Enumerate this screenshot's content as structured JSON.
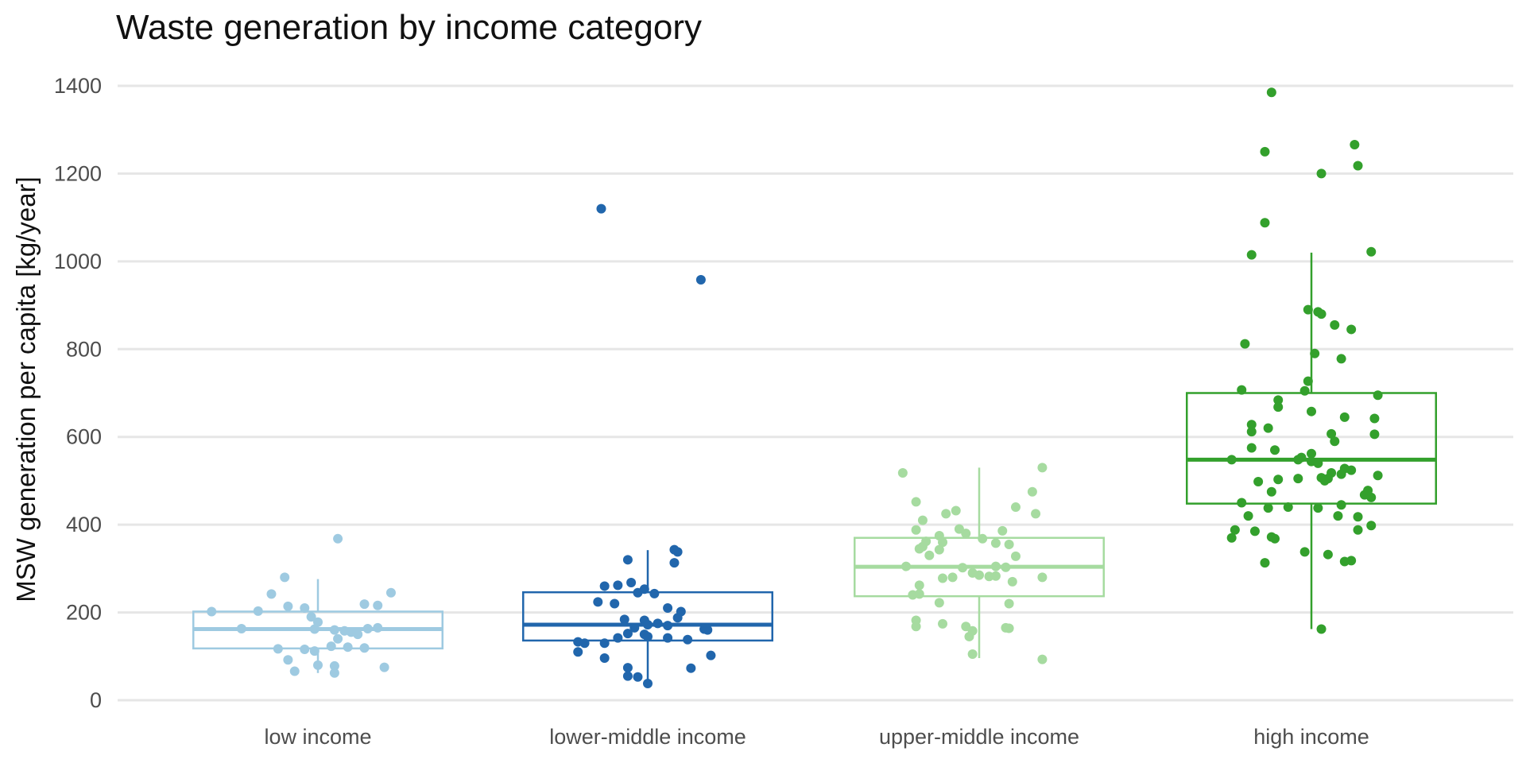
{
  "chart_data": {
    "type": "box",
    "title": "Waste generation by income category",
    "xlabel": "",
    "ylabel": "MSW generation per capita [kg/year]",
    "ylim": [
      0,
      1400
    ],
    "yticks": [
      0,
      200,
      400,
      600,
      800,
      1000,
      1200,
      1400
    ],
    "grid": "horizontal",
    "legend": "none",
    "categories": [
      "low income",
      "lower-middle income",
      "upper-middle income",
      "high income"
    ],
    "series": [
      {
        "category": "low income",
        "color": "#9ecae1",
        "box": {
          "lower_whisker": 62,
          "q1": 118,
          "median": 162,
          "q3": 202,
          "upper_whisker": 276
        },
        "points": [
          {
            "x": 0.06,
            "y": 368
          },
          {
            "x": -0.1,
            "y": 280
          },
          {
            "x": -0.14,
            "y": 242
          },
          {
            "x": 0.22,
            "y": 245
          },
          {
            "x": 0.14,
            "y": 219
          },
          {
            "x": 0.18,
            "y": 216
          },
          {
            "x": -0.09,
            "y": 214
          },
          {
            "x": -0.04,
            "y": 210
          },
          {
            "x": -0.18,
            "y": 203
          },
          {
            "x": -0.32,
            "y": 202
          },
          {
            "x": -0.02,
            "y": 190
          },
          {
            "x": 0.0,
            "y": 178
          },
          {
            "x": -0.23,
            "y": 163
          },
          {
            "x": -0.01,
            "y": 162
          },
          {
            "x": 0.05,
            "y": 160
          },
          {
            "x": 0.08,
            "y": 158
          },
          {
            "x": 0.1,
            "y": 155
          },
          {
            "x": 0.15,
            "y": 163
          },
          {
            "x": 0.18,
            "y": 165
          },
          {
            "x": 0.12,
            "y": 150
          },
          {
            "x": 0.06,
            "y": 140
          },
          {
            "x": 0.04,
            "y": 123
          },
          {
            "x": 0.09,
            "y": 121
          },
          {
            "x": 0.14,
            "y": 119
          },
          {
            "x": -0.12,
            "y": 117
          },
          {
            "x": -0.04,
            "y": 116
          },
          {
            "x": -0.01,
            "y": 112
          },
          {
            "x": -0.09,
            "y": 92
          },
          {
            "x": 0.0,
            "y": 80
          },
          {
            "x": 0.05,
            "y": 78
          },
          {
            "x": 0.2,
            "y": 75
          },
          {
            "x": -0.07,
            "y": 66
          },
          {
            "x": 0.05,
            "y": 62
          }
        ]
      },
      {
        "category": "lower-middle income",
        "color": "#2166ac",
        "box": {
          "lower_whisker": 38,
          "q1": 136,
          "median": 172,
          "q3": 246,
          "upper_whisker": 342
        },
        "points": [
          {
            "x": -0.14,
            "y": 1120
          },
          {
            "x": 0.16,
            "y": 958
          },
          {
            "x": 0.08,
            "y": 343
          },
          {
            "x": 0.09,
            "y": 338
          },
          {
            "x": -0.06,
            "y": 320
          },
          {
            "x": 0.08,
            "y": 313
          },
          {
            "x": -0.05,
            "y": 268
          },
          {
            "x": -0.13,
            "y": 260
          },
          {
            "x": -0.09,
            "y": 262
          },
          {
            "x": -0.01,
            "y": 253
          },
          {
            "x": -0.03,
            "y": 245
          },
          {
            "x": 0.02,
            "y": 243
          },
          {
            "x": -0.15,
            "y": 224
          },
          {
            "x": -0.1,
            "y": 220
          },
          {
            "x": 0.06,
            "y": 210
          },
          {
            "x": 0.1,
            "y": 202
          },
          {
            "x": 0.09,
            "y": 188
          },
          {
            "x": -0.07,
            "y": 184
          },
          {
            "x": -0.01,
            "y": 182
          },
          {
            "x": 0.0,
            "y": 172
          },
          {
            "x": 0.03,
            "y": 175
          },
          {
            "x": 0.06,
            "y": 170
          },
          {
            "x": -0.04,
            "y": 165
          },
          {
            "x": 0.17,
            "y": 162
          },
          {
            "x": 0.18,
            "y": 160
          },
          {
            "x": -0.06,
            "y": 152
          },
          {
            "x": -0.01,
            "y": 150
          },
          {
            "x": 0.0,
            "y": 145
          },
          {
            "x": -0.09,
            "y": 142
          },
          {
            "x": 0.06,
            "y": 142
          },
          {
            "x": -0.21,
            "y": 133
          },
          {
            "x": -0.19,
            "y": 130
          },
          {
            "x": -0.13,
            "y": 130
          },
          {
            "x": 0.12,
            "y": 138
          },
          {
            "x": -0.21,
            "y": 110
          },
          {
            "x": 0.19,
            "y": 102
          },
          {
            "x": -0.13,
            "y": 96
          },
          {
            "x": 0.13,
            "y": 73
          },
          {
            "x": -0.06,
            "y": 74
          },
          {
            "x": -0.06,
            "y": 55
          },
          {
            "x": -0.03,
            "y": 53
          },
          {
            "x": 0.0,
            "y": 38
          }
        ]
      },
      {
        "category": "upper-middle income",
        "color": "#a6dba0",
        "box": {
          "lower_whisker": 96,
          "q1": 237,
          "median": 304,
          "q3": 370,
          "upper_whisker": 530
        },
        "points": [
          {
            "x": 0.19,
            "y": 530
          },
          {
            "x": -0.23,
            "y": 518
          },
          {
            "x": 0.16,
            "y": 475
          },
          {
            "x": -0.19,
            "y": 452
          },
          {
            "x": 0.11,
            "y": 440
          },
          {
            "x": -0.07,
            "y": 432
          },
          {
            "x": -0.1,
            "y": 425
          },
          {
            "x": 0.17,
            "y": 425
          },
          {
            "x": -0.17,
            "y": 410
          },
          {
            "x": -0.06,
            "y": 390
          },
          {
            "x": -0.19,
            "y": 388
          },
          {
            "x": 0.07,
            "y": 386
          },
          {
            "x": -0.12,
            "y": 375
          },
          {
            "x": -0.04,
            "y": 380
          },
          {
            "x": -0.16,
            "y": 362
          },
          {
            "x": -0.11,
            "y": 360
          },
          {
            "x": 0.01,
            "y": 368
          },
          {
            "x": 0.05,
            "y": 358
          },
          {
            "x": 0.09,
            "y": 355
          },
          {
            "x": -0.17,
            "y": 350
          },
          {
            "x": -0.18,
            "y": 345
          },
          {
            "x": -0.12,
            "y": 343
          },
          {
            "x": -0.15,
            "y": 330
          },
          {
            "x": 0.11,
            "y": 328
          },
          {
            "x": -0.22,
            "y": 305
          },
          {
            "x": -0.05,
            "y": 302
          },
          {
            "x": 0.05,
            "y": 305
          },
          {
            "x": 0.08,
            "y": 303
          },
          {
            "x": -0.02,
            "y": 290
          },
          {
            "x": 0.0,
            "y": 285
          },
          {
            "x": 0.03,
            "y": 282
          },
          {
            "x": 0.05,
            "y": 283
          },
          {
            "x": -0.08,
            "y": 280
          },
          {
            "x": -0.11,
            "y": 278
          },
          {
            "x": 0.19,
            "y": 280
          },
          {
            "x": 0.1,
            "y": 270
          },
          {
            "x": -0.18,
            "y": 262
          },
          {
            "x": -0.18,
            "y": 242
          },
          {
            "x": -0.2,
            "y": 240
          },
          {
            "x": 0.09,
            "y": 220
          },
          {
            "x": -0.12,
            "y": 222
          },
          {
            "x": -0.19,
            "y": 182
          },
          {
            "x": -0.11,
            "y": 174
          },
          {
            "x": -0.19,
            "y": 168
          },
          {
            "x": -0.04,
            "y": 168
          },
          {
            "x": 0.08,
            "y": 165
          },
          {
            "x": 0.09,
            "y": 164
          },
          {
            "x": -0.02,
            "y": 158
          },
          {
            "x": -0.03,
            "y": 145
          },
          {
            "x": -0.02,
            "y": 105
          },
          {
            "x": 0.19,
            "y": 93
          }
        ]
      },
      {
        "category": "high income",
        "color": "#33a02c",
        "box": {
          "lower_whisker": 162,
          "q1": 448,
          "median": 548,
          "q3": 700,
          "upper_whisker": 1020
        },
        "points": [
          {
            "x": -0.12,
            "y": 1385
          },
          {
            "x": -0.14,
            "y": 1250
          },
          {
            "x": 0.13,
            "y": 1266
          },
          {
            "x": 0.14,
            "y": 1218
          },
          {
            "x": 0.03,
            "y": 1200
          },
          {
            "x": -0.14,
            "y": 1088
          },
          {
            "x": 0.18,
            "y": 1022
          },
          {
            "x": -0.18,
            "y": 1015
          },
          {
            "x": -0.01,
            "y": 890
          },
          {
            "x": 0.02,
            "y": 885
          },
          {
            "x": 0.03,
            "y": 880
          },
          {
            "x": 0.07,
            "y": 855
          },
          {
            "x": 0.12,
            "y": 845
          },
          {
            "x": -0.2,
            "y": 812
          },
          {
            "x": 0.01,
            "y": 790
          },
          {
            "x": 0.09,
            "y": 778
          },
          {
            "x": -0.01,
            "y": 727
          },
          {
            "x": -0.02,
            "y": 705
          },
          {
            "x": -0.21,
            "y": 707
          },
          {
            "x": 0.2,
            "y": 695
          },
          {
            "x": -0.1,
            "y": 684
          },
          {
            "x": -0.1,
            "y": 668
          },
          {
            "x": 0.0,
            "y": 658
          },
          {
            "x": 0.1,
            "y": 645
          },
          {
            "x": 0.19,
            "y": 642
          },
          {
            "x": -0.18,
            "y": 628
          },
          {
            "x": -0.13,
            "y": 620
          },
          {
            "x": -0.18,
            "y": 612
          },
          {
            "x": 0.06,
            "y": 607
          },
          {
            "x": 0.19,
            "y": 606
          },
          {
            "x": 0.07,
            "y": 590
          },
          {
            "x": -0.18,
            "y": 575
          },
          {
            "x": -0.11,
            "y": 570
          },
          {
            "x": 0.0,
            "y": 562
          },
          {
            "x": -0.03,
            "y": 553
          },
          {
            "x": -0.04,
            "y": 548
          },
          {
            "x": 0.0,
            "y": 544
          },
          {
            "x": 0.02,
            "y": 540
          },
          {
            "x": -0.24,
            "y": 548
          },
          {
            "x": 0.1,
            "y": 528
          },
          {
            "x": 0.12,
            "y": 524
          },
          {
            "x": 0.06,
            "y": 518
          },
          {
            "x": 0.09,
            "y": 515
          },
          {
            "x": 0.2,
            "y": 512
          },
          {
            "x": -0.04,
            "y": 505
          },
          {
            "x": 0.03,
            "y": 507
          },
          {
            "x": 0.05,
            "y": 505
          },
          {
            "x": -0.1,
            "y": 503
          },
          {
            "x": 0.04,
            "y": 500
          },
          {
            "x": -0.16,
            "y": 498
          },
          {
            "x": 0.17,
            "y": 478
          },
          {
            "x": -0.12,
            "y": 475
          },
          {
            "x": 0.16,
            "y": 468
          },
          {
            "x": 0.18,
            "y": 462
          },
          {
            "x": -0.21,
            "y": 450
          },
          {
            "x": 0.09,
            "y": 445
          },
          {
            "x": -0.07,
            "y": 440
          },
          {
            "x": -0.13,
            "y": 438
          },
          {
            "x": 0.02,
            "y": 438
          },
          {
            "x": -0.19,
            "y": 420
          },
          {
            "x": 0.08,
            "y": 420
          },
          {
            "x": 0.14,
            "y": 418
          },
          {
            "x": 0.18,
            "y": 398
          },
          {
            "x": -0.23,
            "y": 388
          },
          {
            "x": -0.17,
            "y": 385
          },
          {
            "x": 0.14,
            "y": 388
          },
          {
            "x": -0.12,
            "y": 372
          },
          {
            "x": -0.11,
            "y": 368
          },
          {
            "x": -0.24,
            "y": 370
          },
          {
            "x": -0.02,
            "y": 338
          },
          {
            "x": 0.05,
            "y": 332
          },
          {
            "x": -0.14,
            "y": 313
          },
          {
            "x": 0.12,
            "y": 318
          },
          {
            "x": 0.1,
            "y": 316
          },
          {
            "x": 0.03,
            "y": 162
          }
        ]
      }
    ]
  }
}
